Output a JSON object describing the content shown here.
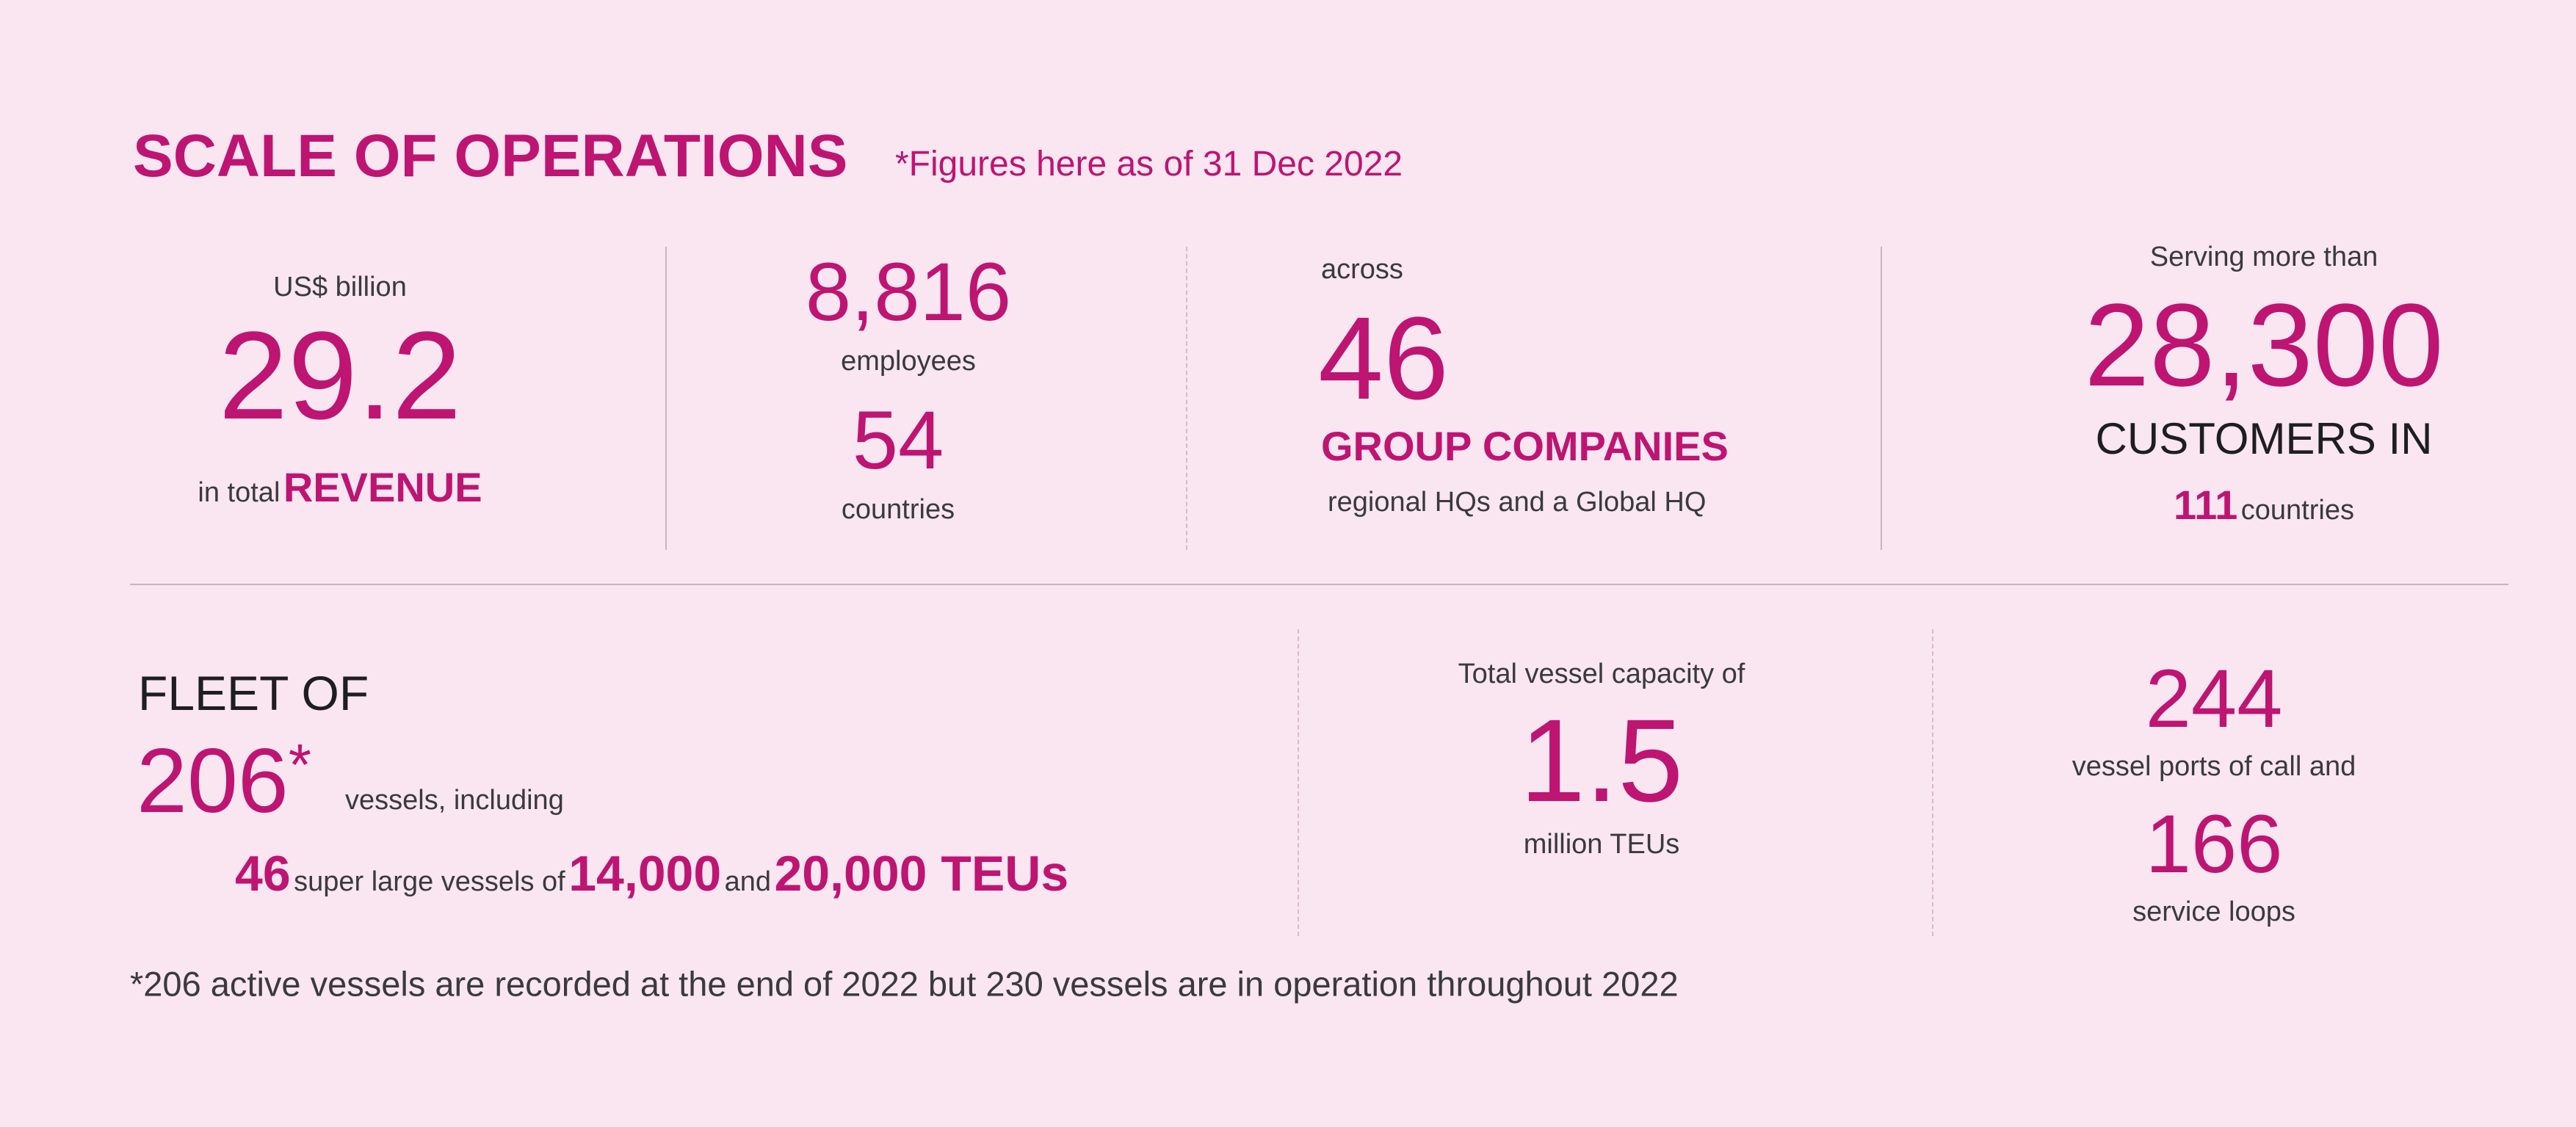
{
  "header": {
    "title": "SCALE OF OPERATIONS",
    "note": "*Figures here as of 31 Dec 2022"
  },
  "revenue": {
    "unit": "US$ billion",
    "value": "29.2",
    "prefix": "in total",
    "label": "REVENUE"
  },
  "employees": {
    "value": "8,816",
    "label": "employees",
    "countries_value": "54",
    "countries_label": "countries"
  },
  "companies": {
    "prefix": "across",
    "value": "46",
    "label": "GROUP COMPANIES",
    "sub": "regional HQs and a Global HQ"
  },
  "customers": {
    "prefix": "Serving more than",
    "value": "28,300",
    "label": "CUSTOMERS IN",
    "countries_value": "111",
    "countries_label": "countries"
  },
  "fleet": {
    "title": "FLEET OF",
    "value": "206",
    "asterisk": "*",
    "suffix": "vessels, including",
    "large_value": "46",
    "large_text": "super large vessels of",
    "teu_a": "14,000",
    "and": "and",
    "teu_b": "20,000 TEUs"
  },
  "capacity": {
    "prefix": "Total vessel capacity of",
    "value": "1.5",
    "label": "million TEUs"
  },
  "ports": {
    "value": "244",
    "label": "vessel ports of call and",
    "loops_value": "166",
    "loops_label": "service loops"
  },
  "footnote": "*206 active vessels are recorded at the end of 2022 but 230 vessels are in operation throughout 2022",
  "colors": {
    "background": "#f9e6f1",
    "accent": "#be1472",
    "text": "#3a3a3c"
  }
}
